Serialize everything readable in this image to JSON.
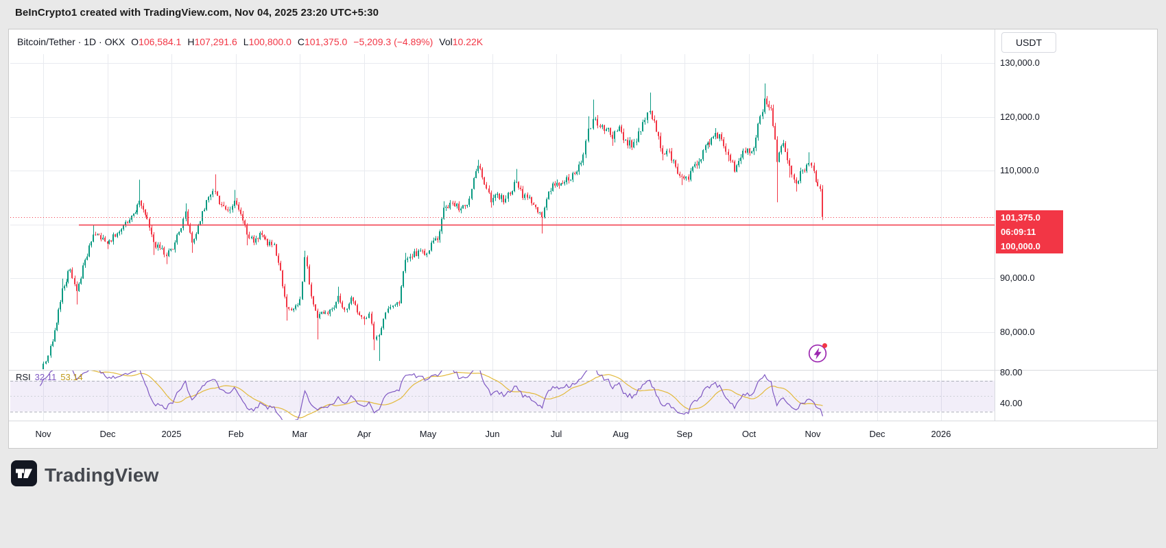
{
  "attribution": {
    "text": "BeInCrypto1 created with TradingView.com, Nov 04, 2025 23:20 UTC+5:30"
  },
  "header": {
    "title": "Bitcoin/Tether · 1D · OKX",
    "o_label": "O",
    "o": "106,584.1",
    "h_label": "H",
    "h": "107,291.6",
    "l_label": "L",
    "l": "100,800.0",
    "c_label": "C",
    "c": "101,375.0",
    "change": "−5,209.3 (−4.89%)",
    "vol_label": "Vol",
    "vol": "10.22K",
    "currency_button": "USDT"
  },
  "price_scale": {
    "labels": [
      {
        "text": "130,000.0",
        "value": 130000
      },
      {
        "text": "120,000.0",
        "value": 120000
      },
      {
        "text": "110,000.0",
        "value": 110000
      },
      {
        "text": "90,000.0",
        "value": 90000
      },
      {
        "text": "80,000.0",
        "value": 80000
      }
    ],
    "current_price": "101,375.0",
    "countdown": "06:09:11",
    "alert_price": "100,000.0"
  },
  "rsi_legend": {
    "label": "RSI",
    "value": "32.11",
    "ma_value": "53.14"
  },
  "rsi_scale": {
    "labels": [
      {
        "text": "80.00",
        "value": 80
      },
      {
        "text": "40.00",
        "value": 40
      }
    ]
  },
  "time_axis": {
    "labels": [
      {
        "text": "Nov",
        "t": 0
      },
      {
        "text": "Dec",
        "t": 1
      },
      {
        "text": "2025",
        "t": 2
      },
      {
        "text": "Feb",
        "t": 3
      },
      {
        "text": "Mar",
        "t": 4
      },
      {
        "text": "Apr",
        "t": 5
      },
      {
        "text": "May",
        "t": 6
      },
      {
        "text": "Jun",
        "t": 7
      },
      {
        "text": "Jul",
        "t": 8
      },
      {
        "text": "Aug",
        "t": 9
      },
      {
        "text": "Sep",
        "t": 10
      },
      {
        "text": "Oct",
        "t": 11
      },
      {
        "text": "Nov",
        "t": 12
      },
      {
        "text": "Dec",
        "t": 13
      },
      {
        "text": "2026",
        "t": 14
      }
    ]
  },
  "logo": {
    "text": "TradingView"
  },
  "chart_data": {
    "type": "candlestick",
    "symbol": "BTC/USDT",
    "timeframe": "1D",
    "t_unit": "months since Nov 1 2024",
    "ylim": [
      73500,
      131500
    ],
    "y_gridlines": [
      80000,
      90000,
      100000,
      110000,
      120000,
      130000
    ],
    "levels": {
      "alert_line": 100000,
      "last_price": 101375
    },
    "last_candle": {
      "open": 106584.1,
      "high": 107291.6,
      "low": 100800.0,
      "close": 101375.0
    },
    "anchors": [
      [
        -0.55,
        70800
      ],
      [
        -0.38,
        68900
      ],
      [
        -0.2,
        70900
      ],
      [
        -0.05,
        72300
      ],
      [
        0,
        74100
      ],
      [
        0.08,
        75600
      ],
      [
        0.18,
        80300
      ],
      [
        0.3,
        88100,
        89900,
        null
      ],
      [
        0.42,
        91600
      ],
      [
        0.52,
        87600,
        null,
        85100
      ],
      [
        0.65,
        93400
      ],
      [
        0.78,
        98100,
        99800,
        null
      ],
      [
        0.9,
        97200
      ],
      [
        1,
        96400,
        null,
        95400
      ],
      [
        1.12,
        97700
      ],
      [
        1.25,
        99800
      ],
      [
        1.38,
        101600
      ],
      [
        1.5,
        104400,
        108300,
        null
      ],
      [
        1.62,
        101000
      ],
      [
        1.72,
        96700,
        null,
        94300
      ],
      [
        1.82,
        95600
      ],
      [
        1.92,
        94100,
        null,
        92600
      ],
      [
        2.02,
        95300
      ],
      [
        2.12,
        98600
      ],
      [
        2.22,
        102400,
        103900,
        null
      ],
      [
        2.32,
        96600,
        null,
        94700
      ],
      [
        2.45,
        100600
      ],
      [
        2.58,
        105100
      ],
      [
        2.68,
        106100,
        109300,
        null
      ],
      [
        2.78,
        103600
      ],
      [
        2.88,
        102600
      ],
      [
        2.98,
        104400,
        106400,
        null
      ],
      [
        3.08,
        101900
      ],
      [
        3.18,
        98100,
        null,
        96100
      ],
      [
        3.28,
        96600
      ],
      [
        3.38,
        98400
      ],
      [
        3.5,
        96100
      ],
      [
        3.6,
        96300
      ],
      [
        3.7,
        91400
      ],
      [
        3.8,
        84600,
        null,
        82100
      ],
      [
        3.9,
        84300
      ],
      [
        4,
        86100
      ],
      [
        4.08,
        93900,
        95100,
        null
      ],
      [
        4.18,
        86600
      ],
      [
        4.28,
        82600,
        null,
        78600
      ],
      [
        4.4,
        83600
      ],
      [
        4.5,
        84300
      ],
      [
        4.6,
        86700,
        88400,
        null
      ],
      [
        4.7,
        84100
      ],
      [
        4.8,
        86400
      ],
      [
        4.9,
        83600
      ],
      [
        5,
        82400,
        null,
        81300
      ],
      [
        5.08,
        83400
      ],
      [
        5.16,
        78600,
        null,
        76600
      ],
      [
        5.24,
        79400,
        null,
        74600
      ],
      [
        5.34,
        83600
      ],
      [
        5.45,
        84900
      ],
      [
        5.55,
        85300
      ],
      [
        5.65,
        93400,
        94700,
        null
      ],
      [
        5.75,
        93900
      ],
      [
        5.85,
        95100
      ],
      [
        5.95,
        94300
      ],
      [
        6.05,
        96600
      ],
      [
        6.15,
        97100
      ],
      [
        6.25,
        103100,
        104300,
        null
      ],
      [
        6.38,
        104000
      ],
      [
        6.48,
        102600
      ],
      [
        6.58,
        103400
      ],
      [
        6.68,
        106600
      ],
      [
        6.78,
        110900,
        112000,
        null
      ],
      [
        6.88,
        107400
      ],
      [
        6.98,
        104100,
        null,
        103100
      ],
      [
        7.08,
        105700
      ],
      [
        7.18,
        104100
      ],
      [
        7.28,
        105600
      ],
      [
        7.38,
        107900,
        110300,
        null
      ],
      [
        7.48,
        104900
      ],
      [
        7.58,
        105100
      ],
      [
        7.68,
        103200
      ],
      [
        7.78,
        101300,
        null,
        98300
      ],
      [
        7.88,
        106100
      ],
      [
        7.98,
        107200
      ],
      [
        8.1,
        107600
      ],
      [
        8.22,
        108300
      ],
      [
        8.32,
        109800
      ],
      [
        8.42,
        113000
      ],
      [
        8.5,
        117800,
        120100,
        null
      ],
      [
        8.58,
        119600,
        123200,
        null
      ],
      [
        8.68,
        118100
      ],
      [
        8.78,
        117700
      ],
      [
        8.88,
        115900,
        null,
        114600
      ],
      [
        8.98,
        118200
      ],
      [
        9.08,
        115700
      ],
      [
        9.18,
        114300
      ],
      [
        9.28,
        117300
      ],
      [
        9.38,
        119400
      ],
      [
        9.46,
        121100,
        124500,
        null
      ],
      [
        9.56,
        117200
      ],
      [
        9.66,
        113100,
        null,
        111900
      ],
      [
        9.76,
        113600
      ],
      [
        9.86,
        110700
      ],
      [
        9.96,
        108900,
        null,
        107300
      ],
      [
        10.06,
        108300
      ],
      [
        10.16,
        111200
      ],
      [
        10.26,
        112100
      ],
      [
        10.36,
        115200
      ],
      [
        10.48,
        117000,
        117900,
        null
      ],
      [
        10.58,
        115800
      ],
      [
        10.68,
        112900,
        null,
        111700
      ],
      [
        10.78,
        109800
      ],
      [
        10.88,
        112400
      ],
      [
        10.98,
        114100
      ],
      [
        11.08,
        114200
      ],
      [
        11.18,
        120100
      ],
      [
        11.25,
        123400,
        126200,
        null
      ],
      [
        11.35,
        121600
      ],
      [
        11.44,
        111600,
        null,
        104100
      ],
      [
        11.54,
        115100
      ],
      [
        11.64,
        110900,
        null,
        108700
      ],
      [
        11.74,
        107600,
        null,
        106100
      ],
      [
        11.84,
        110000
      ],
      [
        11.94,
        111400,
        113400,
        null
      ],
      [
        12.02,
        109900
      ],
      [
        12.08,
        107100
      ],
      [
        12.12,
        106584.1
      ],
      [
        12.155,
        101375,
        107291.6,
        100800
      ]
    ],
    "rsi": {
      "period": 14,
      "bands": [
        30,
        70
      ],
      "mid": 50,
      "pane_range": [
        20,
        82
      ],
      "last": 32.11,
      "ma_last": 53.14
    },
    "colors": {
      "up": "#089981",
      "down": "#f23645",
      "alert_red": "#f23645",
      "rsi": "#7e57c2",
      "rsi_ma": "#e2b93b",
      "band_fill": "rgba(126,87,194,0.10)",
      "grid": "#e8eaef",
      "separator": "#d8dade"
    }
  }
}
